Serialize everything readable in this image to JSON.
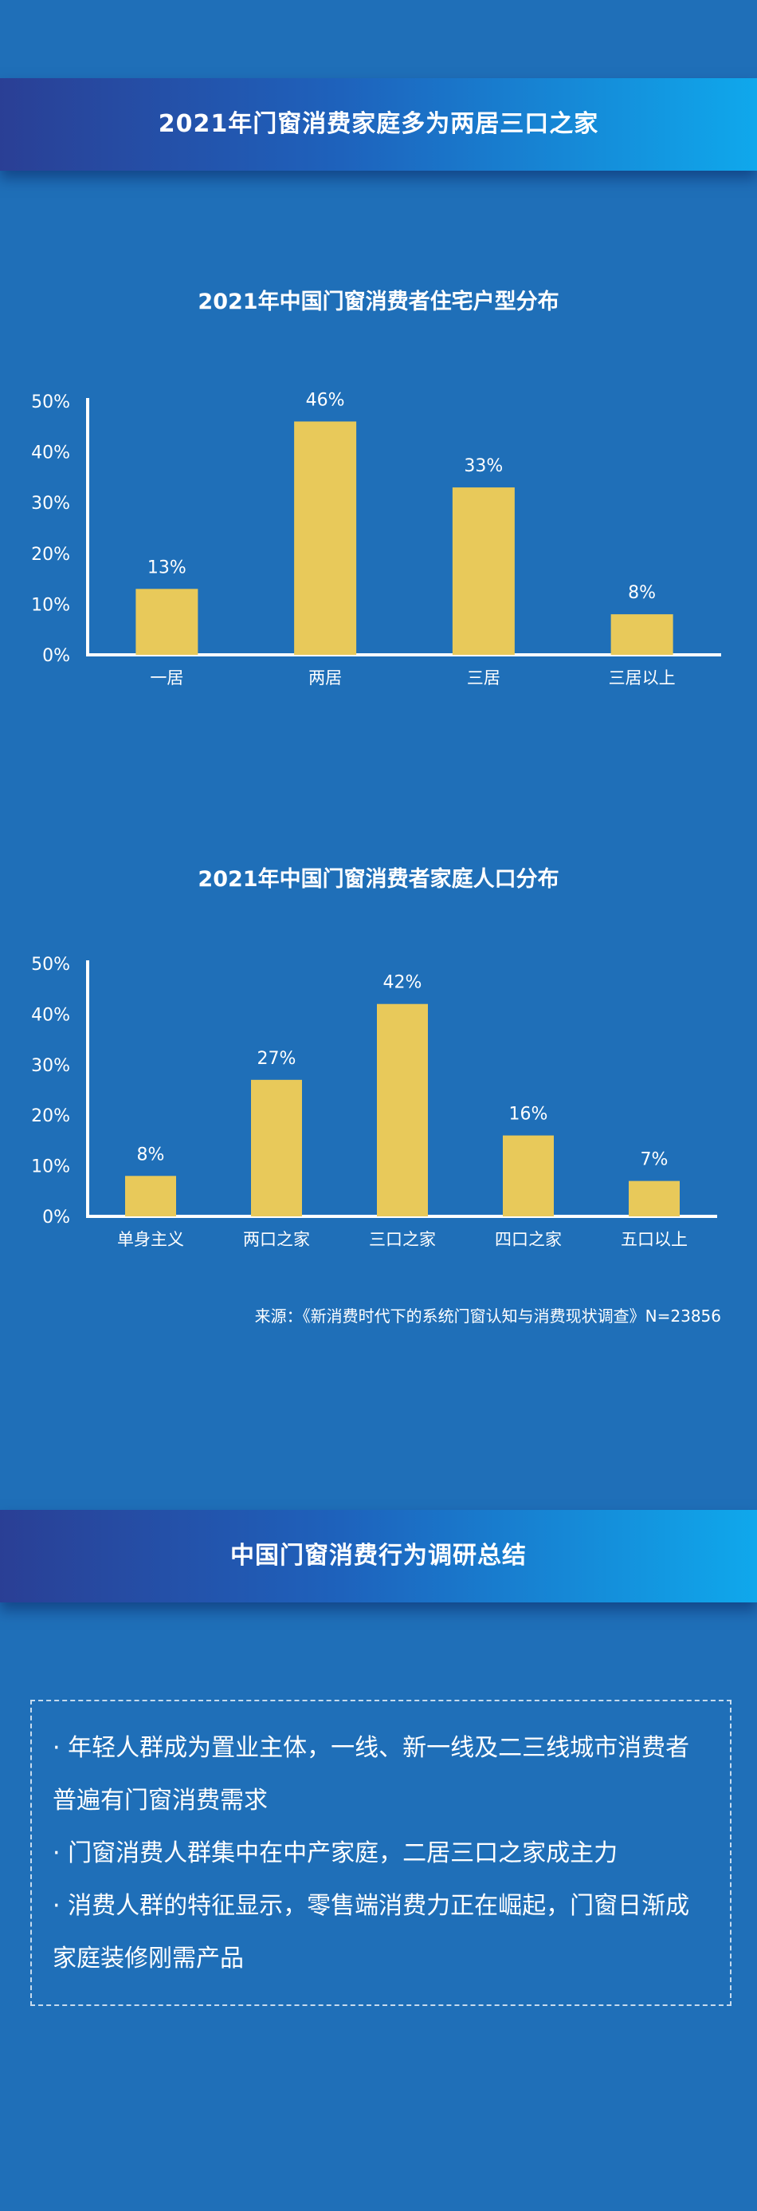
{
  "section1": {
    "title": "2021年门窗消费家庭多为两居三口之家"
  },
  "chart_data": [
    {
      "type": "bar",
      "title": "2021年中国门窗消费者住宅户型分布",
      "categories": [
        "一居",
        "两居",
        "三居",
        "三居以上"
      ],
      "values": [
        13,
        46,
        33,
        8
      ],
      "value_labels": [
        "13%",
        "46%",
        "33%",
        "8%"
      ],
      "yticks": [
        "0%",
        "10%",
        "20%",
        "30%",
        "40%",
        "50%"
      ],
      "ylim": [
        0,
        50
      ],
      "grid": false,
      "bar_color": "#e8c95a"
    },
    {
      "type": "bar",
      "title": "2021年中国门窗消费者家庭人口分布",
      "categories": [
        "单身主义",
        "两口之家",
        "三口之家",
        "四口之家",
        "五口以上"
      ],
      "values": [
        8,
        27,
        42,
        16,
        7
      ],
      "value_labels": [
        "8%",
        "27%",
        "42%",
        "16%",
        "7%"
      ],
      "yticks": [
        "0%",
        "10%",
        "20%",
        "30%",
        "40%",
        "50%"
      ],
      "ylim": [
        0,
        50
      ],
      "grid": false,
      "bar_color": "#e8c95a"
    }
  ],
  "source": "来源：《新消费时代下的系统门窗认知与消费现状调查》N=23856",
  "section2": {
    "title": "中国门窗消费行为调研总结",
    "items": [
      "· 年轻人群成为置业主体，一线、新一线及二三线城市消费者普遍有门窗消费需求",
      "· 门窗消费人群集中在中产家庭，二居三口之家成主力",
      "· 消费人群的特征显示，零售端消费力正在崛起，门窗日渐成家庭装修刚需产品"
    ]
  },
  "colors": {
    "background": "#1f6fb8",
    "bar": "#e8c95a",
    "banner_start": "#2a3f95",
    "banner_end": "#0fa8ec"
  }
}
